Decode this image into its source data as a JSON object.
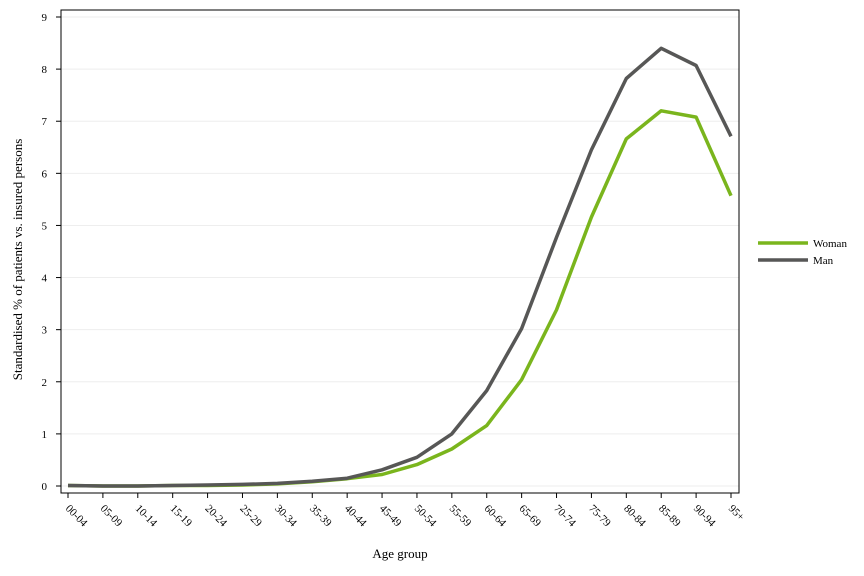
{
  "chart_data": {
    "type": "line",
    "xlabel": "Age group",
    "ylabel": "Standardised % of patients vs. insured persons",
    "ylim": [
      0,
      9
    ],
    "yticks": [
      0,
      1,
      2,
      3,
      4,
      5,
      6,
      7,
      8,
      9
    ],
    "grid": "horizontal",
    "legend_position": "right",
    "categories": [
      "00-04",
      "05-09",
      "10-14",
      "15-19",
      "20-24",
      "25-29",
      "30-34",
      "35-39",
      "40-44",
      "45-49",
      "50-54",
      "55-59",
      "60-64",
      "65-69",
      "70-74",
      "75-79",
      "80-84",
      "85-89",
      "90-94",
      "95+"
    ],
    "series": [
      {
        "name": "Woman",
        "color": "#7ab51d",
        "values": [
          0.01,
          0.0,
          0.0,
          0.01,
          0.01,
          0.02,
          0.04,
          0.08,
          0.14,
          0.22,
          0.41,
          0.71,
          1.16,
          2.04,
          3.38,
          5.16,
          6.66,
          7.2,
          7.08,
          5.57
        ]
      },
      {
        "name": "Man",
        "color": "#575756",
        "values": [
          0.01,
          0.0,
          0.0,
          0.01,
          0.02,
          0.03,
          0.05,
          0.09,
          0.15,
          0.31,
          0.55,
          1.0,
          1.83,
          3.02,
          4.77,
          6.45,
          7.82,
          8.4,
          8.07,
          6.71
        ]
      }
    ]
  }
}
